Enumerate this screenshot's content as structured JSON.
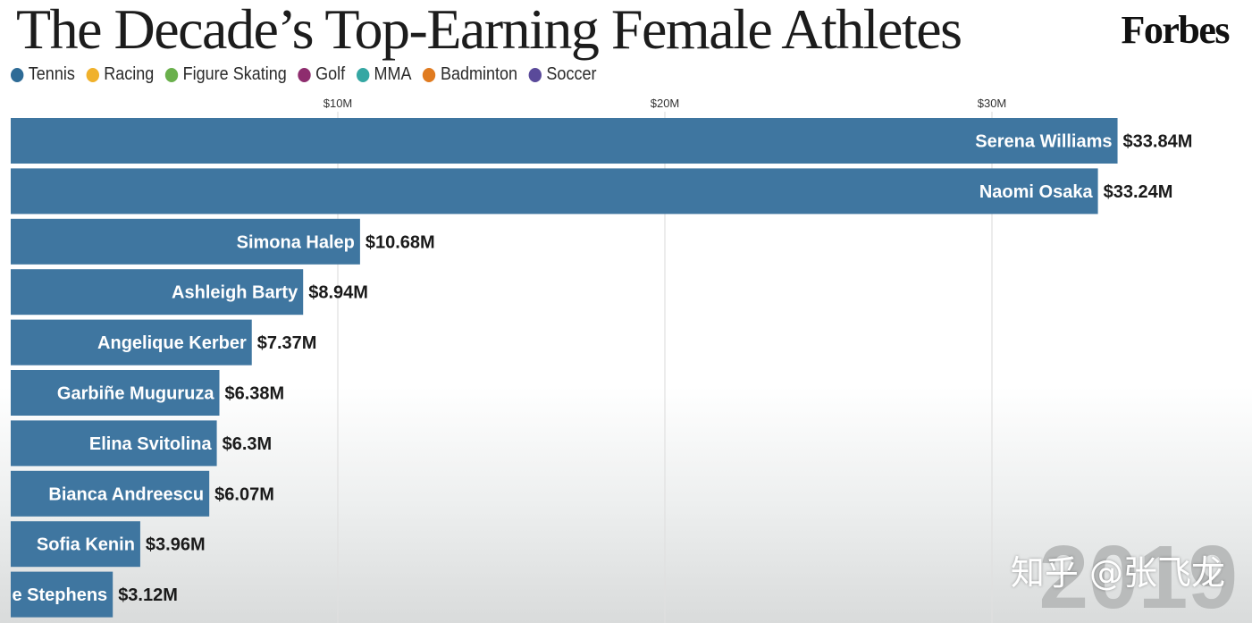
{
  "header": {
    "title": "The Decade’s Top-Earning Female Athletes",
    "brand": "Forbes"
  },
  "legend": [
    {
      "label": "Tennis",
      "color": "#2e6b96"
    },
    {
      "label": "Racing",
      "color": "#f0b12b"
    },
    {
      "label": "Figure Skating",
      "color": "#6ab04c"
    },
    {
      "label": "Golf",
      "color": "#8e2d6e"
    },
    {
      "label": "MMA",
      "color": "#35a7a3"
    },
    {
      "label": "Badminton",
      "color": "#e07b20"
    },
    {
      "label": "Soccer",
      "color": "#5a4a9a"
    }
  ],
  "year": "2019",
  "watermark": "知乎 @张飞龙",
  "chart_data": {
    "type": "bar",
    "orientation": "horizontal",
    "title": "The Decade’s Top-Earning Female Athletes",
    "x_ticks": [
      {
        "value": 10,
        "label": "$10M"
      },
      {
        "value": 20,
        "label": "$20M"
      },
      {
        "value": 30,
        "label": "$30M"
      }
    ],
    "xlim": [
      0,
      38
    ],
    "grid": true,
    "bar_color": "#3f76a0",
    "categories": [
      "Serena Williams",
      "Naomi Osaka",
      "Simona Halep",
      "Ashleigh Barty",
      "Angelique Kerber",
      "Garbiñe Muguruza",
      "Elina Svitolina",
      "Bianca Andreescu",
      "Sofia Kenin",
      "e Stephens"
    ],
    "values": [
      33.84,
      33.24,
      10.68,
      8.94,
      7.37,
      6.38,
      6.3,
      6.07,
      3.96,
      3.12
    ],
    "value_labels": [
      "$33.84M",
      "$33.24M",
      "$10.68M",
      "$8.94M",
      "$7.37M",
      "$6.38M",
      "$6.3M",
      "$6.07M",
      "$3.96M",
      "$3.12M"
    ],
    "sport": [
      "Tennis",
      "Tennis",
      "Tennis",
      "Tennis",
      "Tennis",
      "Tennis",
      "Tennis",
      "Tennis",
      "Tennis",
      "Tennis"
    ]
  }
}
